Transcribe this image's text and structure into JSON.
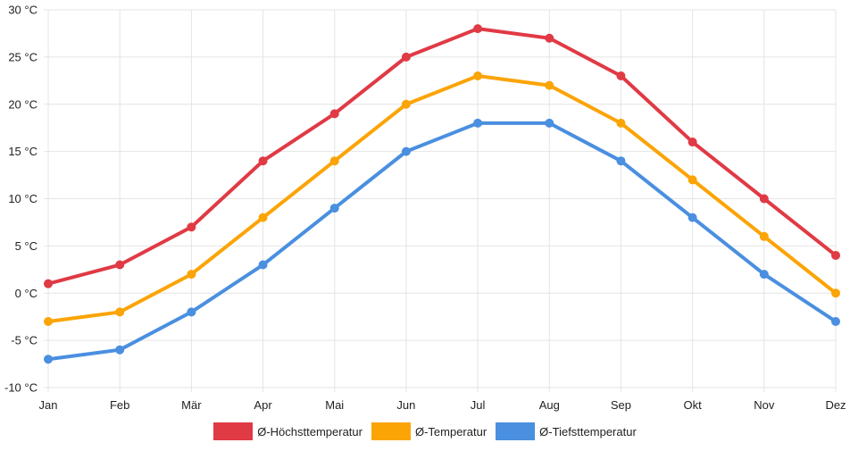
{
  "chart_data": {
    "type": "line",
    "categories": [
      "Jan",
      "Feb",
      "Mär",
      "Apr",
      "Mai",
      "Jun",
      "Jul",
      "Aug",
      "Sep",
      "Okt",
      "Nov",
      "Dez"
    ],
    "series": [
      {
        "name": "Ø-Höchsttemperatur",
        "color": "#e03a45",
        "values": [
          1,
          3,
          7,
          14,
          19,
          25,
          28,
          27,
          23,
          16,
          10,
          4
        ]
      },
      {
        "name": "Ø-Temperatur",
        "color": "#fba406",
        "values": [
          -3,
          -2,
          2,
          8,
          14,
          20,
          23,
          22,
          18,
          12,
          6,
          0
        ]
      },
      {
        "name": "Ø-Tiefsttemperatur",
        "color": "#4a8fe0",
        "values": [
          -7,
          -6,
          -2,
          3,
          9,
          15,
          18,
          18,
          14,
          8,
          2,
          -3
        ]
      }
    ],
    "y_ticks": [
      {
        "value": 30,
        "label": "30 °C"
      },
      {
        "value": 25,
        "label": "25 °C"
      },
      {
        "value": 20,
        "label": "20 °C"
      },
      {
        "value": 15,
        "label": "15 °C"
      },
      {
        "value": 10,
        "label": "10 °C"
      },
      {
        "value": 5,
        "label": "5 °C"
      },
      {
        "value": 0,
        "label": "0 °C"
      },
      {
        "value": -5,
        "label": "-5 °C"
      },
      {
        "value": -10,
        "label": "-10 °C"
      }
    ],
    "ylim": [
      -10,
      30
    ],
    "title": "",
    "xlabel": "",
    "ylabel": "",
    "grid": true,
    "legend_position": "bottom"
  }
}
